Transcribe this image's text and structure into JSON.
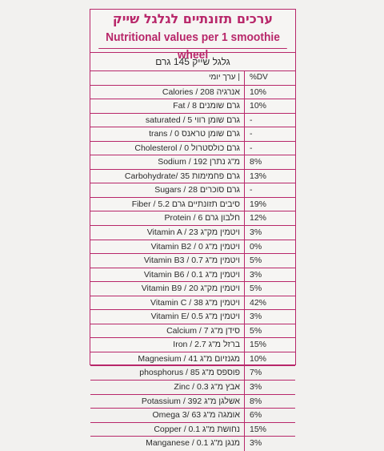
{
  "title_he": "ערכים תזונתיים לגלגל שייק",
  "title_en": "Nutritional values per 1 smoothie wheel",
  "serving": "גלגל שייק 145 גרם",
  "header": {
    "name": "ערך יומי |",
    "dv": "%DV"
  },
  "rows": [
    {
      "name": "Calories / 208 אנרגיה",
      "dv": "10%"
    },
    {
      "name": "Fat / 8 גרם שומנים",
      "dv": "10%"
    },
    {
      "name": "saturated / 5 גרם שומן רווי",
      "dv": "-"
    },
    {
      "name": "trans / 0 גרם שומן טראנס",
      "dv": "-"
    },
    {
      "name": "Cholesterol / 0 גרם כולסטרול",
      "dv": "-"
    },
    {
      "name": "Sodium / 192 מ\"ג נתרן",
      "dv": "8%"
    },
    {
      "name": "Carbohydrate/ 35 גרם פחמימות",
      "dv": "13%"
    },
    {
      "name": "Sugars / 28 גרם סוכרים",
      "dv": "-"
    },
    {
      "name": "Fiber / 5.2 סיבים תזונתיים גרם",
      "dv": "19%"
    },
    {
      "name": "Protein / 6 חלבון גרם",
      "dv": "12%"
    },
    {
      "name": "Vitamin A / 23 ויטמין מק\"ג",
      "dv": "3%"
    },
    {
      "name": "Vitamin B2 / 0 ויטמין מ\"ג",
      "dv": "0%"
    },
    {
      "name": "Vitamin B3 / 0.7 ויטמין מ\"ג",
      "dv": "5%"
    },
    {
      "name": "Vitamin B6 / 0.1 ויטמין מ\"ג",
      "dv": "3%"
    },
    {
      "name": "Vitamin B9 / 20 ויטמין מק\"ג",
      "dv": "5%"
    },
    {
      "name": "Vitamin C / 38 ויטמין מ\"ג",
      "dv": "42%"
    },
    {
      "name": "Vitamin E/ 0.5 ויטמין מ\"ג",
      "dv": "3%"
    },
    {
      "name": "Calcium / 7 סידן מ\"ג",
      "dv": "5%"
    },
    {
      "name": "Iron / 2.7 ברזל מ\"ג",
      "dv": "15%"
    },
    {
      "name": "Magnesium / 41 מגנזיום מ\"ג",
      "dv": "10%"
    },
    {
      "name": "phosphorus / 85 פוספס מ\"ג",
      "dv": "7%"
    },
    {
      "name": "Zinc / 0.3 אבץ מ\"ג",
      "dv": "3%"
    },
    {
      "name": "Potassium / 392 אשלגן מ\"ג",
      "dv": "8%"
    },
    {
      "name": "Omega 3/ 63 אומגה מ\"ג",
      "dv": "6%"
    },
    {
      "name": "Copper / 0.1 נחושת מ\"ג",
      "dv": "15%"
    },
    {
      "name": "Manganese / 0.1 מנגן מ\"ג",
      "dv": "3%"
    }
  ]
}
